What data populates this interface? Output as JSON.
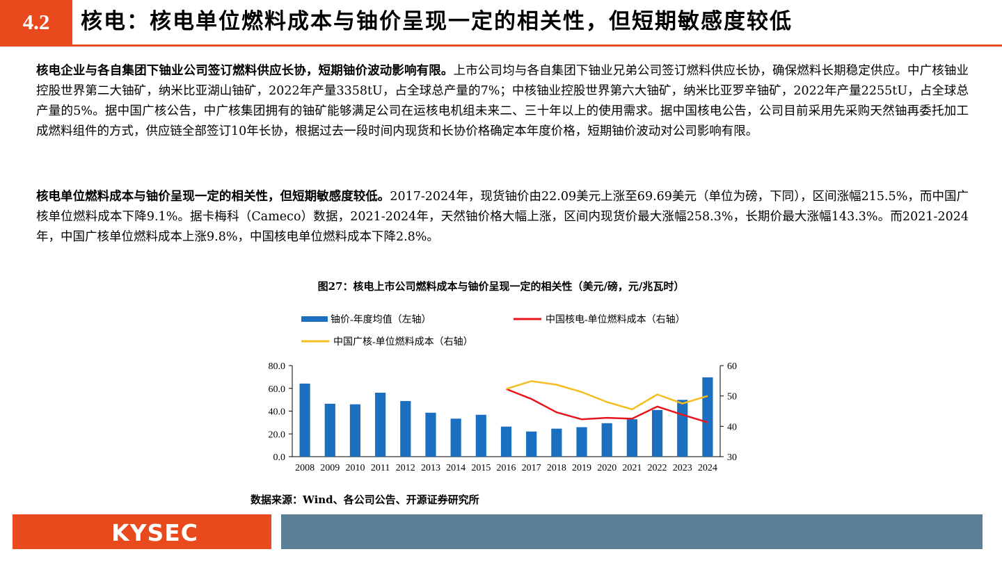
{
  "header": {
    "section_number": "4.2",
    "title": "核电：核电单位燃料成本与铀价呈现一定的相关性，但短期敏感度较低"
  },
  "paragraphs": [
    {
      "lead": "核电企业与各自集团下铀业公司签订燃料供应长协，短期铀价波动影响有限。",
      "body": "上市公司均与各自集团下铀业兄弟公司签订燃料供应长协，确保燃料长期稳定供应。中广核铀业控股世界第二大铀矿，纳米比亚湖山铀矿，2022年产量3358tU，占全球总产量的7%；中核铀业控股世界第六大铀矿，纳米比亚罗辛铀矿，2022年产量2255tU，占全球总产量的5%。据中国广核公告，中广核集团拥有的铀矿能够满足公司在运核电机组未来二、三十年以上的使用需求。据中国核电公告，公司目前采用先采购天然铀再委托加工成燃料组件的方式，供应链全部签订10年长协，根据过去一段时间内现货和长协价格确定本年度价格，短期铀价波动对公司影响有限。"
    },
    {
      "lead": "核电单位燃料成本与铀价呈现一定的相关性，但短期敏感度较低。",
      "body": "2017-2024年，现货铀价由22.09美元上涨至69.69美元（单位为磅，下同），区间涨幅215.5%，而中国广核单位燃料成本下降9.1%。据卡梅科（Cameco）数据，2021-2024年，天然铀价格大幅上涨，区间内现货价最大涨幅258.3%，长期价最大涨幅143.3%。而2021-2024年，中国广核单位燃料成本上涨9.8%，中国核电单位燃料成本下降2.8%。"
    }
  ],
  "figure": {
    "title": "图27：核电上市公司燃料成本与铀价呈现一定的相关性（美元/磅，元/兆瓦时）",
    "source": "数据来源：Wind、各公司公告、开源证券研究所"
  },
  "chart_data": {
    "type": "bar",
    "categories": [
      "2008",
      "2009",
      "2010",
      "2011",
      "2012",
      "2013",
      "2014",
      "2015",
      "2016",
      "2017",
      "2018",
      "2019",
      "2020",
      "2021",
      "2022",
      "2023",
      "2024"
    ],
    "ylim_left": [
      0,
      80
    ],
    "yticks_left": [
      "0.0",
      "20.0",
      "40.0",
      "60.0",
      "80.0"
    ],
    "ylim_right": [
      30,
      60
    ],
    "yticks_right": [
      "30.0",
      "40.0",
      "50.0",
      "60.0"
    ],
    "grid": false,
    "legend_position": "top",
    "series": [
      {
        "name": "铀价-年度均值（左轴）",
        "kind": "bar",
        "axis": "left",
        "color": "#1b6fc1",
        "values": [
          64.2,
          46.5,
          46.0,
          56.2,
          48.9,
          38.6,
          33.4,
          36.8,
          26.4,
          22.09,
          24.6,
          25.9,
          29.4,
          32.9,
          41.0,
          49.9,
          69.69
        ]
      },
      {
        "name": "中国核电-单位燃料成本（右轴）",
        "kind": "line",
        "axis": "right",
        "color": "#e8141b",
        "values": [
          null,
          null,
          null,
          null,
          null,
          null,
          null,
          null,
          52.3,
          49.0,
          44.6,
          42.3,
          42.8,
          42.5,
          46.5,
          43.8,
          41.3
        ]
      },
      {
        "name": "中国广核-单位燃料成本（右轴）",
        "kind": "line",
        "axis": "right",
        "color": "#f5bd1f",
        "values": [
          null,
          null,
          null,
          null,
          null,
          null,
          null,
          null,
          52.3,
          54.9,
          53.7,
          51.3,
          48.0,
          45.6,
          50.5,
          47.5,
          50.0
        ]
      }
    ]
  },
  "footer": {
    "logo_text": "KYSEC",
    "accent_color": "#e8491d",
    "bar_color": "#5b7f94"
  }
}
